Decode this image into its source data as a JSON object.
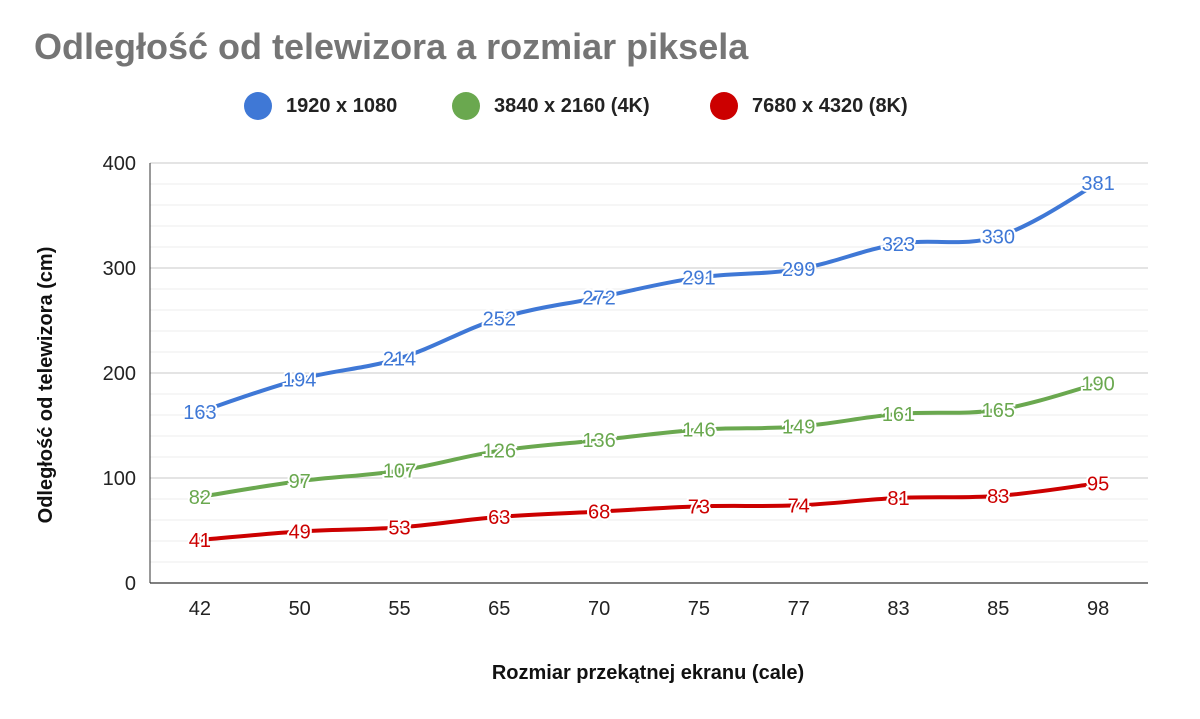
{
  "chart_data": {
    "type": "line",
    "title": "Odległość od telewizora a rozmiar piksela",
    "xlabel": "Rozmiar przekątnej ekranu (cale)",
    "ylabel": "Odległość od telewizora (cm)",
    "categories": [
      "42",
      "50",
      "55",
      "65",
      "70",
      "75",
      "77",
      "83",
      "85",
      "98"
    ],
    "ylim": [
      0,
      400
    ],
    "yticks": [
      0,
      100,
      200,
      300,
      400
    ],
    "grid": true,
    "legend_position": "top",
    "series": [
      {
        "name": "1920 x 1080",
        "color": "#3f78d6",
        "values": [
          163,
          194,
          214,
          252,
          272,
          291,
          299,
          323,
          330,
          381
        ]
      },
      {
        "name": "3840 x 2160 (4K)",
        "color": "#6aa84f",
        "values": [
          82,
          97,
          107,
          126,
          136,
          146,
          149,
          161,
          165,
          190
        ]
      },
      {
        "name": "7680 x 4320 (8K)",
        "color": "#cc0000",
        "values": [
          41,
          49,
          53,
          63,
          68,
          73,
          74,
          81,
          83,
          95
        ]
      }
    ]
  }
}
